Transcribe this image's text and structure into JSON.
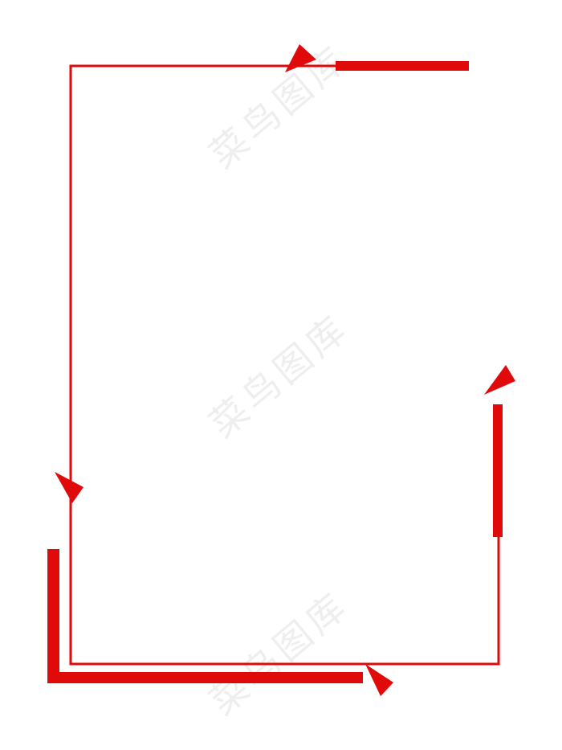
{
  "watermarks": [
    "菜鸟图库",
    "菜鸟图库",
    "菜鸟图库"
  ]
}
